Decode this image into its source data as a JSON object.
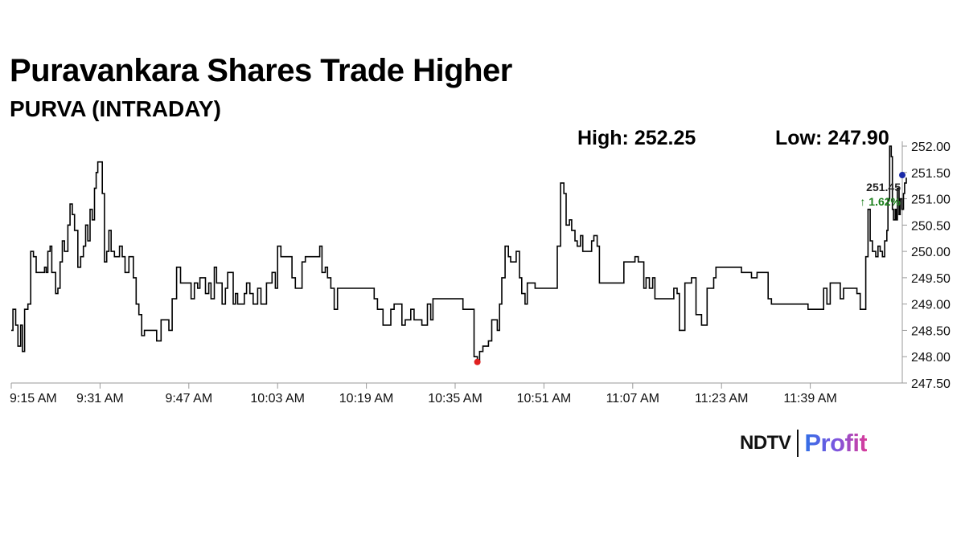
{
  "header": {
    "title": "Puravankara Shares Trade Higher",
    "subtitle": "PURVA (INTRADAY)"
  },
  "stats": {
    "high": "High: 252.25",
    "low": "Low: 247.90"
  },
  "brand": {
    "ndtv": "NDTV",
    "profit": "Profit",
    "colors": {
      "ndtv_dot": "#e02020",
      "profit_start": "#2f6fe6",
      "profit_end": "#d93b9a"
    }
  },
  "chart_data": {
    "type": "line",
    "title": "Puravankara Shares Trade Higher",
    "xlabel": "",
    "ylabel": "",
    "x_start": "9:15 AM",
    "x_tick_labels": [
      "9:15 AM",
      "9:31 AM",
      "9:47 AM",
      "10:03 AM",
      "10:19 AM",
      "10:35 AM",
      "10:51 AM",
      "11:07 AM",
      "11:23 AM",
      "11:39 AM"
    ],
    "y_tick_labels": [
      "252.00",
      "251.50",
      "251.00",
      "250.50",
      "250.00",
      "249.50",
      "249.00",
      "248.50",
      "248.00",
      "247.50"
    ],
    "ylim": [
      247.5,
      252.0
    ],
    "xlim_minutes": [
      0,
      159
    ],
    "y_axis_position": "right",
    "grid": false,
    "line_color": "#000000",
    "markers": {
      "low": {
        "minute": 84,
        "value": 247.9,
        "color": "#e02020"
      },
      "last": {
        "minute": 159,
        "value": 251.45,
        "color": "#1a2aa8"
      }
    },
    "annotation": {
      "price": "251.45",
      "change": "↑ 1.62%"
    },
    "series": [
      {
        "points": [
          [
            0,
            248.5
          ],
          [
            0.3,
            248.9
          ],
          [
            0.8,
            248.6
          ],
          [
            1.2,
            248.2
          ],
          [
            1.7,
            248.6
          ],
          [
            2.0,
            248.1
          ],
          [
            2.4,
            248.9
          ],
          [
            3.0,
            249.0
          ],
          [
            3.5,
            250.0
          ],
          [
            4.0,
            249.9
          ],
          [
            4.5,
            249.6
          ],
          [
            6.0,
            249.7
          ],
          [
            6.3,
            249.6
          ],
          [
            6.6,
            250.0
          ],
          [
            7.0,
            250.1
          ],
          [
            7.3,
            249.6
          ],
          [
            7.6,
            249.6
          ],
          [
            8.0,
            249.2
          ],
          [
            8.4,
            249.3
          ],
          [
            8.8,
            249.8
          ],
          [
            9.2,
            250.2
          ],
          [
            9.6,
            250.0
          ],
          [
            10.2,
            250.5
          ],
          [
            10.6,
            250.9
          ],
          [
            11.0,
            250.7
          ],
          [
            11.4,
            250.4
          ],
          [
            11.7,
            250.4
          ],
          [
            12.0,
            249.7
          ],
          [
            12.5,
            249.9
          ],
          [
            13.0,
            250.1
          ],
          [
            13.4,
            250.5
          ],
          [
            13.8,
            250.2
          ],
          [
            14.2,
            250.8
          ],
          [
            14.6,
            250.6
          ],
          [
            15.0,
            251.2
          ],
          [
            15.3,
            251.5
          ],
          [
            15.6,
            251.7
          ],
          [
            16.0,
            251.7
          ],
          [
            16.4,
            251.1
          ],
          [
            16.8,
            249.8
          ],
          [
            17.2,
            250.0
          ],
          [
            17.6,
            250.4
          ],
          [
            18.0,
            250.0
          ],
          [
            18.6,
            249.9
          ],
          [
            19.5,
            250.1
          ],
          [
            20.0,
            249.9
          ],
          [
            20.5,
            249.6
          ],
          [
            21.0,
            249.6
          ],
          [
            21.2,
            249.9
          ],
          [
            21.5,
            249.9
          ],
          [
            22.0,
            249.5
          ],
          [
            22.5,
            249.0
          ],
          [
            23.0,
            248.8
          ],
          [
            23.5,
            248.4
          ],
          [
            24.0,
            248.5
          ],
          [
            26.0,
            248.5
          ],
          [
            26.2,
            248.3
          ],
          [
            26.6,
            248.3
          ],
          [
            27.0,
            248.7
          ],
          [
            28.0,
            248.7
          ],
          [
            28.4,
            248.5
          ],
          [
            29.0,
            249.1
          ],
          [
            29.4,
            249.1
          ],
          [
            29.8,
            249.7
          ],
          [
            30.5,
            249.4
          ],
          [
            31.0,
            249.4
          ],
          [
            32.0,
            249.4
          ],
          [
            32.4,
            249.1
          ],
          [
            33.0,
            249.4
          ],
          [
            33.6,
            249.3
          ],
          [
            34.0,
            249.5
          ],
          [
            34.4,
            249.5
          ],
          [
            35.0,
            249.2
          ],
          [
            35.6,
            249.4
          ],
          [
            36.0,
            249.1
          ],
          [
            36.6,
            249.7
          ],
          [
            37.0,
            249.4
          ],
          [
            37.6,
            249.4
          ],
          [
            38.0,
            249.0
          ],
          [
            38.6,
            249.3
          ],
          [
            39.0,
            249.6
          ],
          [
            39.6,
            249.6
          ],
          [
            40.0,
            249.0
          ],
          [
            40.4,
            249.2
          ],
          [
            40.8,
            249.0
          ],
          [
            42.0,
            249.2
          ],
          [
            42.4,
            249.4
          ],
          [
            43.0,
            249.2
          ],
          [
            43.6,
            249.0
          ],
          [
            44.4,
            249.3
          ],
          [
            45.0,
            249.0
          ],
          [
            46.0,
            249.4
          ],
          [
            47.0,
            249.6
          ],
          [
            47.6,
            249.3
          ],
          [
            48.0,
            250.1
          ],
          [
            48.6,
            249.9
          ],
          [
            50.0,
            249.9
          ],
          [
            50.6,
            249.5
          ],
          [
            51.2,
            249.3
          ],
          [
            51.8,
            249.3
          ],
          [
            52.4,
            249.8
          ],
          [
            53.0,
            249.9
          ],
          [
            55.0,
            249.9
          ],
          [
            55.6,
            250.1
          ],
          [
            56.0,
            249.6
          ],
          [
            56.6,
            249.7
          ],
          [
            57.0,
            249.5
          ],
          [
            57.6,
            249.3
          ],
          [
            58.2,
            248.9
          ],
          [
            58.8,
            249.3
          ],
          [
            65.0,
            249.3
          ],
          [
            65.4,
            249.1
          ],
          [
            66.0,
            248.9
          ],
          [
            67.0,
            248.6
          ],
          [
            68.0,
            248.6
          ],
          [
            68.4,
            248.9
          ],
          [
            69.0,
            249.0
          ],
          [
            70.0,
            249.0
          ],
          [
            70.4,
            248.6
          ],
          [
            71.0,
            248.7
          ],
          [
            72.0,
            248.9
          ],
          [
            72.6,
            248.7
          ],
          [
            74.0,
            248.6
          ],
          [
            75.0,
            249.0
          ],
          [
            75.6,
            248.7
          ],
          [
            76.0,
            249.1
          ],
          [
            81.0,
            249.1
          ],
          [
            81.4,
            248.9
          ],
          [
            83.0,
            248.9
          ],
          [
            83.4,
            248.0
          ],
          [
            84.0,
            247.9
          ],
          [
            84.4,
            248.1
          ],
          [
            85.0,
            248.2
          ],
          [
            85.6,
            248.2
          ],
          [
            86.0,
            248.3
          ],
          [
            86.6,
            248.7
          ],
          [
            87.0,
            248.7
          ],
          [
            87.6,
            248.5
          ],
          [
            88.0,
            249.0
          ],
          [
            88.4,
            249.5
          ],
          [
            89.0,
            250.1
          ],
          [
            89.6,
            249.9
          ],
          [
            90.0,
            249.8
          ],
          [
            91.0,
            250.0
          ],
          [
            91.6,
            249.5
          ],
          [
            92.0,
            249.2
          ],
          [
            92.6,
            249.0
          ],
          [
            93.0,
            249.4
          ],
          [
            94.0,
            249.4
          ],
          [
            94.4,
            249.3
          ],
          [
            98.0,
            249.3
          ],
          [
            98.4,
            250.1
          ],
          [
            99.0,
            251.3
          ],
          [
            99.6,
            251.1
          ],
          [
            100.0,
            250.5
          ],
          [
            100.6,
            250.6
          ],
          [
            101.0,
            250.4
          ],
          [
            101.6,
            250.2
          ],
          [
            102.0,
            250.1
          ],
          [
            102.6,
            250.3
          ],
          [
            103.0,
            250.0
          ],
          [
            104.0,
            250.0
          ],
          [
            104.6,
            250.2
          ],
          [
            105.0,
            250.3
          ],
          [
            105.6,
            250.1
          ],
          [
            106.0,
            249.4
          ],
          [
            110.0,
            249.4
          ],
          [
            110.4,
            249.8
          ],
          [
            112.0,
            249.8
          ],
          [
            112.4,
            249.9
          ],
          [
            113.0,
            249.8
          ],
          [
            114.0,
            249.3
          ],
          [
            114.4,
            249.5
          ],
          [
            115.0,
            249.3
          ],
          [
            115.6,
            249.5
          ],
          [
            116.0,
            249.1
          ],
          [
            119.0,
            249.1
          ],
          [
            119.4,
            249.3
          ],
          [
            120.0,
            249.2
          ],
          [
            120.4,
            248.5
          ],
          [
            121.0,
            248.5
          ],
          [
            121.4,
            249.4
          ],
          [
            122.0,
            249.4
          ],
          [
            122.6,
            249.5
          ],
          [
            123.0,
            249.5
          ],
          [
            123.4,
            248.8
          ],
          [
            124.0,
            248.8
          ],
          [
            124.4,
            248.6
          ],
          [
            125.0,
            248.6
          ],
          [
            125.4,
            249.3
          ],
          [
            126.0,
            249.3
          ],
          [
            126.6,
            249.5
          ],
          [
            127.0,
            249.7
          ],
          [
            131.0,
            249.7
          ],
          [
            131.6,
            249.6
          ],
          [
            133.0,
            249.6
          ],
          [
            133.4,
            249.5
          ],
          [
            134.0,
            249.5
          ],
          [
            134.4,
            249.6
          ],
          [
            136.0,
            249.6
          ],
          [
            136.4,
            249.1
          ],
          [
            137.0,
            249.0
          ],
          [
            142.0,
            249.0
          ],
          [
            143.0,
            249.0
          ],
          [
            143.6,
            248.9
          ],
          [
            146.0,
            248.9
          ],
          [
            146.4,
            249.3
          ],
          [
            147.0,
            249.0
          ],
          [
            147.6,
            249.4
          ],
          [
            149.0,
            249.4
          ],
          [
            149.4,
            249.1
          ],
          [
            150.0,
            249.3
          ],
          [
            152.0,
            249.3
          ],
          [
            152.4,
            249.2
          ],
          [
            153.0,
            248.9
          ],
          [
            153.6,
            248.9
          ],
          [
            154.0,
            249.9
          ],
          [
            154.4,
            250.8
          ],
          [
            154.8,
            250.2
          ],
          [
            155.2,
            250.0
          ],
          [
            155.8,
            249.9
          ],
          [
            156.2,
            250.1
          ],
          [
            156.6,
            250.0
          ],
          [
            157.0,
            249.9
          ],
          [
            157.4,
            250.2
          ],
          [
            157.8,
            250.4
          ],
          [
            158.0,
            251.0
          ],
          [
            158.3,
            252.0
          ],
          [
            158.6,
            251.8
          ],
          [
            158.8,
            250.8
          ],
          [
            159.0,
            250.6
          ],
          [
            159.3,
            250.8
          ],
          [
            159.5,
            250.6
          ],
          [
            159.7,
            251.2
          ],
          [
            160.0,
            250.7
          ],
          [
            160.2,
            251.0
          ],
          [
            160.5,
            250.8
          ],
          [
            160.8,
            251.1
          ],
          [
            161.0,
            251.3
          ],
          [
            161.3,
            251.4
          ]
        ]
      }
    ]
  }
}
